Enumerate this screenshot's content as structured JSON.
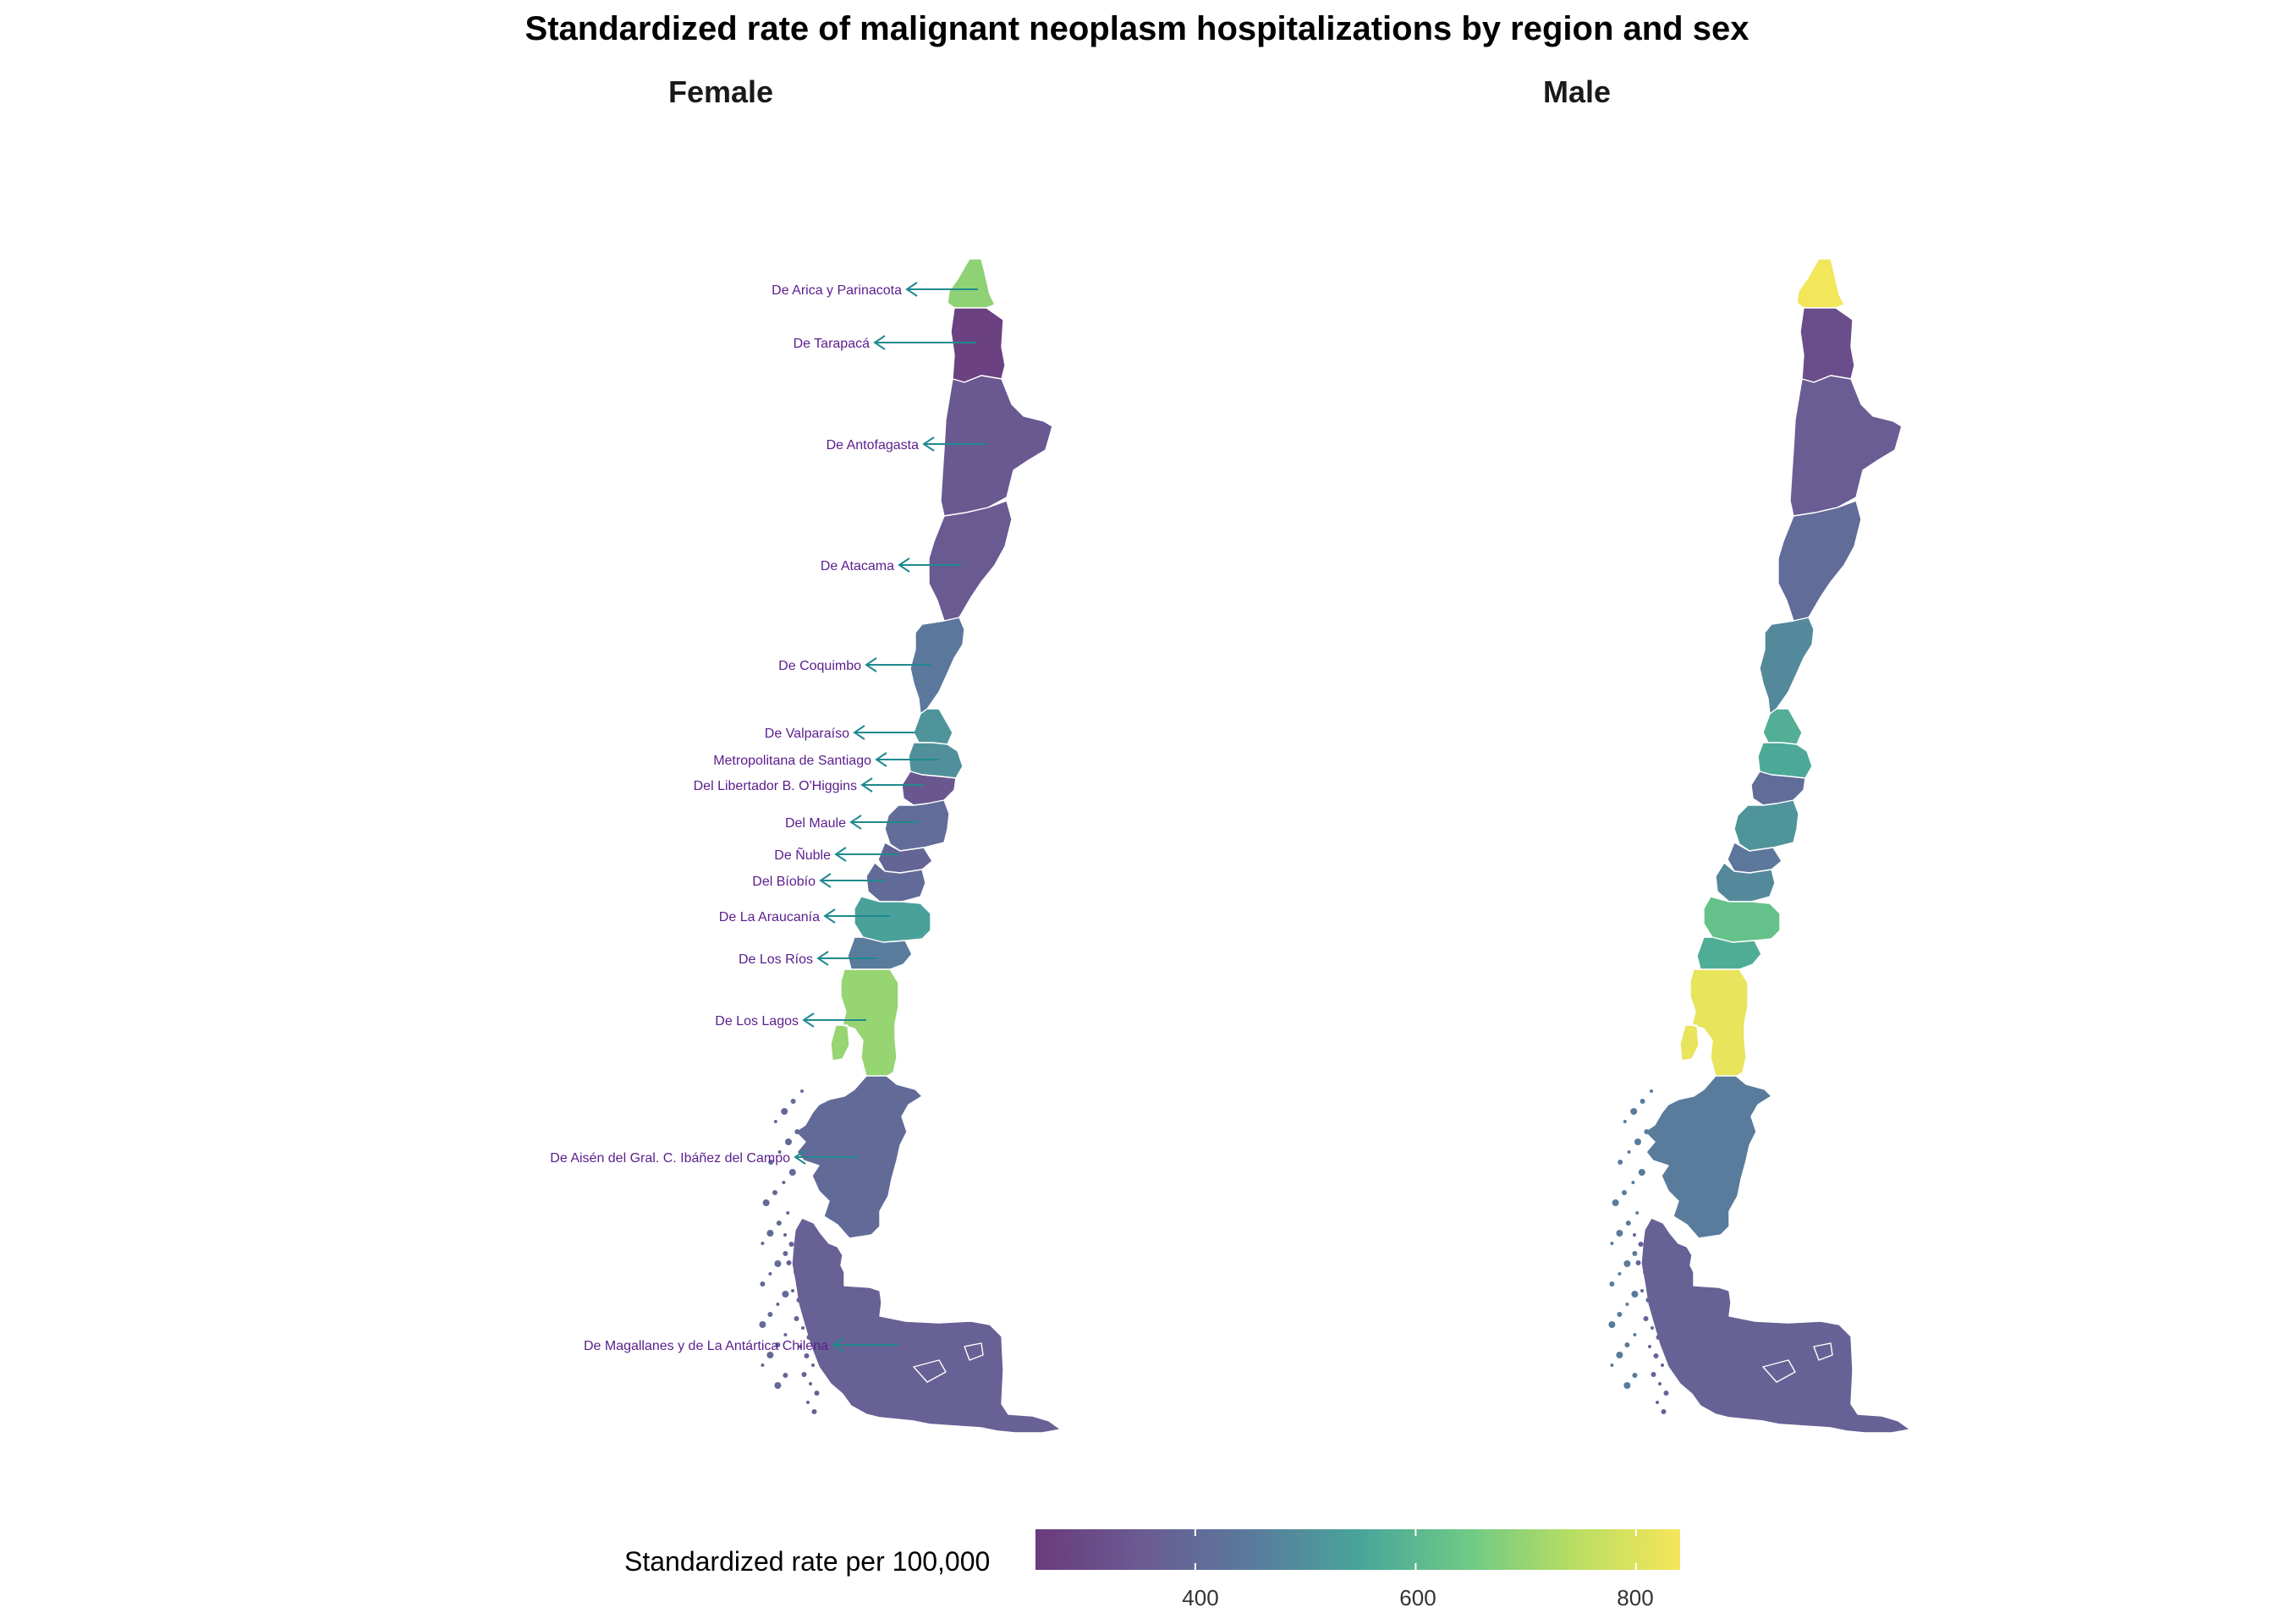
{
  "title": "Standardized rate of malignant neoplasm hospitalizations by region and sex",
  "legend": {
    "title": "Standardized rate per 100,000",
    "min": 255,
    "max": 840,
    "ticks": [
      400,
      600,
      800
    ],
    "colors": [
      "#6b3a7d",
      "#6a5b93",
      "#5a7a9c",
      "#48a49a",
      "#6cc986",
      "#b8dd63",
      "#f5e65a"
    ]
  },
  "label_color": "#5a1d8c",
  "leader_color": "#1f8a8e",
  "facets": [
    {
      "name": "Female",
      "regions": [
        {
          "label": "De Arica y Parinacota",
          "value": 690
        },
        {
          "label": "De Tarapacá",
          "value": 275
        },
        {
          "label": "De Antofagasta",
          "value": 345
        },
        {
          "label": "De Atacama",
          "value": 350
        },
        {
          "label": "De Coquimbo",
          "value": 445
        },
        {
          "label": "De Valparaíso",
          "value": 510
        },
        {
          "label": "Metropolitana de Santiago",
          "value": 500
        },
        {
          "label": "Del Libertador B. O'Higgins",
          "value": 340
        },
        {
          "label": "Del Maule",
          "value": 410
        },
        {
          "label": "De Ñuble",
          "value": 380
        },
        {
          "label": "Del Bíobío",
          "value": 400
        },
        {
          "label": "De La Araucanía",
          "value": 540
        },
        {
          "label": "De Los Ríos",
          "value": 455
        },
        {
          "label": "De Los Lagos",
          "value": 700
        },
        {
          "label": "De Aisén del Gral. C. Ibáñez del Campo",
          "value": 400
        },
        {
          "label": "De Magallanes y de La Antártica Chilena",
          "value": 370
        }
      ]
    },
    {
      "name": "Male",
      "regions": [
        {
          "label": "De Arica y Parinacota",
          "value": 835
        },
        {
          "label": "De Tarapacá",
          "value": 315
        },
        {
          "label": "De Antofagasta",
          "value": 360
        },
        {
          "label": "De Atacama",
          "value": 405
        },
        {
          "label": "De Coquimbo",
          "value": 485
        },
        {
          "label": "De Valparaíso",
          "value": 575
        },
        {
          "label": "Metropolitana de Santiago",
          "value": 560
        },
        {
          "label": "Del Libertador B. O'Higgins",
          "value": 410
        },
        {
          "label": "Del Maule",
          "value": 510
        },
        {
          "label": "De Ñuble",
          "value": 440
        },
        {
          "label": "Del Bíobío",
          "value": 485
        },
        {
          "label": "De La Araucanía",
          "value": 625
        },
        {
          "label": "De Los Ríos",
          "value": 570
        },
        {
          "label": "De Los Lagos",
          "value": 820
        },
        {
          "label": "De Aisén del Gral. C. Ibáñez del Campo",
          "value": 455
        },
        {
          "label": "De Magallanes y de La Antártica Chilena",
          "value": 375
        }
      ]
    }
  ]
}
